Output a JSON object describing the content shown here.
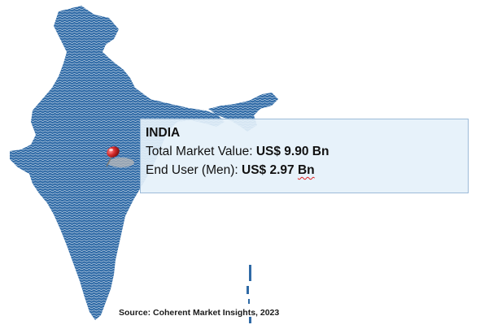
{
  "colors": {
    "land": "#2f6aa6",
    "land_stripe": "#ffffff",
    "callout_fill": "#e5f1fa",
    "callout_border": "#9dbbd8",
    "pin": "#d42a2a"
  },
  "icons": [
    "map-pin-icon"
  ],
  "callout": {
    "title": "INDIA",
    "rows": [
      {
        "label": "Total Market Value: ",
        "value": "US$ 9.90",
        "unit": "Bn"
      },
      {
        "label": "End User (Men): ",
        "value": "US$ 2.97",
        "unit": "Bn"
      }
    ]
  },
  "source": "Source: Coherent Market Insights, 2023"
}
